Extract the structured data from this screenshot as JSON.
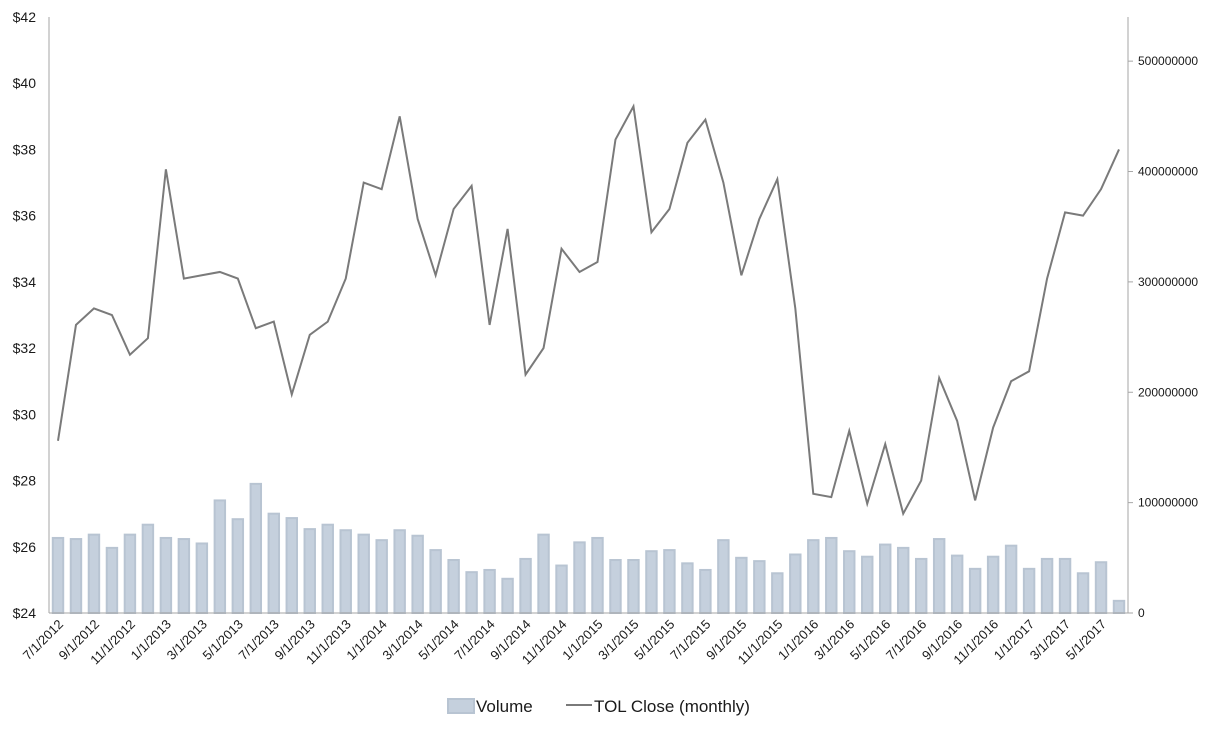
{
  "chart_data": {
    "type": "bar+line",
    "title": "",
    "xlabel": "",
    "ylabel_left": "",
    "ylabel_right": "",
    "x": [
      "7/1/2012",
      "8/1/2012",
      "9/1/2012",
      "10/1/2012",
      "11/1/2012",
      "12/1/2012",
      "1/1/2013",
      "2/1/2013",
      "3/1/2013",
      "4/1/2013",
      "5/1/2013",
      "6/1/2013",
      "7/1/2013",
      "8/1/2013",
      "9/1/2013",
      "10/1/2013",
      "11/1/2013",
      "12/1/2013",
      "1/1/2014",
      "2/1/2014",
      "3/1/2014",
      "4/1/2014",
      "5/1/2014",
      "6/1/2014",
      "7/1/2014",
      "8/1/2014",
      "9/1/2014",
      "10/1/2014",
      "11/1/2014",
      "12/1/2014",
      "1/1/2015",
      "2/1/2015",
      "3/1/2015",
      "4/1/2015",
      "5/1/2015",
      "6/1/2015",
      "7/1/2015",
      "8/1/2015",
      "9/1/2015",
      "10/1/2015",
      "11/1/2015",
      "12/1/2015",
      "1/1/2016",
      "2/1/2016",
      "3/1/2016",
      "4/1/2016",
      "5/1/2016",
      "6/1/2016",
      "7/1/2016",
      "8/1/2016",
      "9/1/2016",
      "10/1/2016",
      "11/1/2016",
      "12/1/2016",
      "1/1/2017",
      "2/1/2017",
      "3/1/2017",
      "4/1/2017",
      "5/1/2017",
      "6/1/2017"
    ],
    "x_tick_labels": [
      "7/1/2012",
      "9/1/2012",
      "11/1/2012",
      "1/1/2013",
      "3/1/2013",
      "5/1/2013",
      "7/1/2013",
      "9/1/2013",
      "11/1/2013",
      "1/1/2014",
      "3/1/2014",
      "5/1/2014",
      "7/1/2014",
      "9/1/2014",
      "11/1/2014",
      "1/1/2015",
      "3/1/2015",
      "5/1/2015",
      "7/1/2015",
      "9/1/2015",
      "11/1/2015",
      "1/1/2016",
      "3/1/2016",
      "5/1/2016",
      "7/1/2016",
      "9/1/2016",
      "11/1/2016",
      "1/1/2017",
      "3/1/2017",
      "5/1/2017"
    ],
    "y_left": {
      "range": [
        24,
        42
      ],
      "ticks": [
        24,
        26,
        28,
        30,
        32,
        34,
        36,
        38,
        40,
        42
      ],
      "tick_labels": [
        "$24",
        "$26",
        "$28",
        "$30",
        "$32",
        "$34",
        "$36",
        "$38",
        "$40",
        "$42"
      ]
    },
    "y_right": {
      "range": [
        0,
        540000000
      ],
      "ticks": [
        0,
        100000000,
        200000000,
        300000000,
        400000000,
        500000000
      ],
      "tick_labels": [
        "0",
        "100000000",
        "200000000",
        "300000000",
        "400000000",
        "500000000"
      ]
    },
    "series": [
      {
        "name": "Volume",
        "type": "bar",
        "axis": "right",
        "color": "#c5d0dd",
        "edge_color": "#b8c4d2",
        "values": [
          68000000,
          67000000,
          71000000,
          59000000,
          71000000,
          80000000,
          68000000,
          67000000,
          63000000,
          102000000,
          85000000,
          117000000,
          90000000,
          86000000,
          76000000,
          80000000,
          75000000,
          71000000,
          66000000,
          75000000,
          70000000,
          57000000,
          48000000,
          37000000,
          39000000,
          31000000,
          49000000,
          71000000,
          43000000,
          64000000,
          68000000,
          48000000,
          48000000,
          56000000,
          57000000,
          45000000,
          39000000,
          66000000,
          50000000,
          47000000,
          36000000,
          53000000,
          66000000,
          68000000,
          56000000,
          51000000,
          62000000,
          59000000,
          49000000,
          67000000,
          52000000,
          40000000,
          51000000,
          61000000,
          40000000,
          49000000,
          49000000,
          36000000,
          46000000,
          11000000
        ]
      },
      {
        "name": "TOL Close (monthly)",
        "type": "line",
        "axis": "left",
        "color": "#7a7a7a",
        "values": [
          29.2,
          32.7,
          33.2,
          33.0,
          31.8,
          32.3,
          37.4,
          34.1,
          34.2,
          34.3,
          34.1,
          32.6,
          32.8,
          30.6,
          32.4,
          32.8,
          34.1,
          37.0,
          36.8,
          39.0,
          35.9,
          34.2,
          36.2,
          36.9,
          32.7,
          35.6,
          31.2,
          32.0,
          35.0,
          34.3,
          34.6,
          38.3,
          39.3,
          35.5,
          36.2,
          38.2,
          38.9,
          37.0,
          34.2,
          35.9,
          37.1,
          33.2,
          27.6,
          27.5,
          29.5,
          27.3,
          29.1,
          27.0,
          28.0,
          31.1,
          29.8,
          27.4,
          29.6,
          31.0,
          31.3,
          34.1,
          36.1,
          36.0,
          36.8,
          38.0
        ]
      }
    ],
    "legend": {
      "placement": "bottom-center",
      "entries": [
        "Volume",
        "TOL Close (monthly)"
      ]
    },
    "grid": false
  }
}
